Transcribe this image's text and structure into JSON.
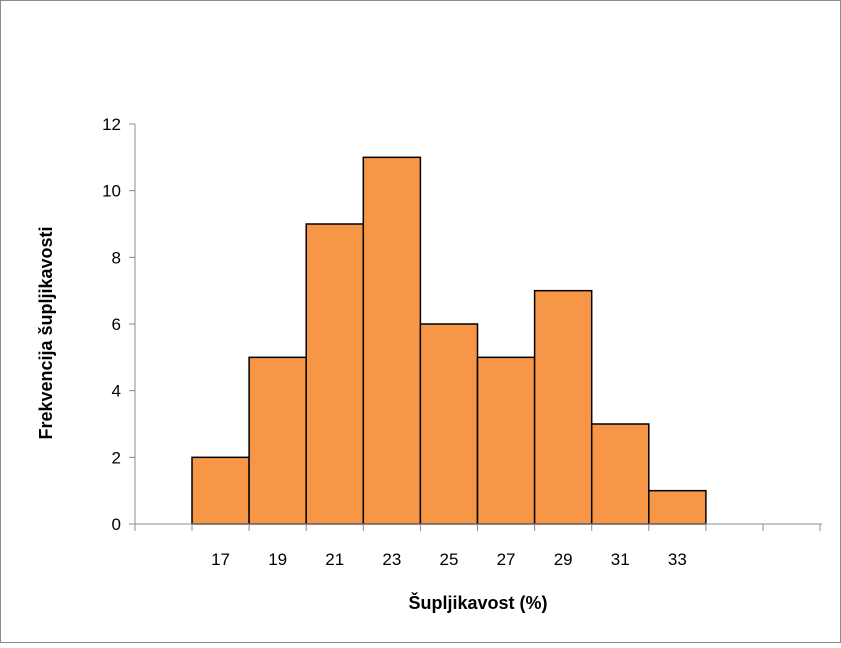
{
  "chart_data": {
    "type": "bar",
    "categories": [
      "17",
      "19",
      "21",
      "23",
      "25",
      "27",
      "29",
      "31",
      "33"
    ],
    "values": [
      2,
      5,
      9,
      11,
      6,
      5,
      7,
      3,
      1
    ],
    "xlabel": "Šupljikavost (%)",
    "ylabel": "Frekvencija šupljikavosti",
    "ylim": [
      0,
      12
    ],
    "yticks": [
      "0",
      "2",
      "4",
      "6",
      "8",
      "10",
      "12"
    ],
    "grid": false,
    "legend": "none",
    "bar_color": "#F79646",
    "bar_edge_color": "#000000"
  }
}
